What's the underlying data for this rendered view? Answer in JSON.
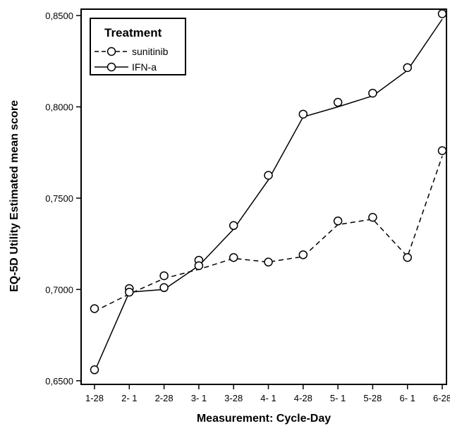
{
  "chart_data": {
    "type": "line",
    "xlabel": "Measurement: Cycle-Day",
    "ylabel": "EQ-5D Utility Estimated mean score",
    "categories": [
      "1-28",
      "2- 1",
      "2-28",
      "3- 1",
      "3-28",
      "4- 1",
      "4-28",
      "5- 1",
      "5-28",
      "6- 1",
      "6-28"
    ],
    "ylim": [
      0.648,
      0.8535
    ],
    "yticks": [
      0.65,
      0.7,
      0.75,
      0.8,
      0.85
    ],
    "ytick_labels": [
      "0,6500",
      "0,7000",
      "0,7500",
      "0,8000",
      "0,8500"
    ],
    "grid": false,
    "legend": {
      "title": "Treatment",
      "placement": "top-left"
    },
    "series": [
      {
        "name": "sunitinib",
        "line_style": "dashed",
        "points": [
          0.6895,
          0.7005,
          0.7075,
          0.716,
          0.7175,
          0.715,
          0.719,
          0.7375,
          0.7395,
          0.7175,
          0.776
        ],
        "fit": [
          0.688,
          0.6975,
          0.706,
          0.711,
          0.717,
          0.715,
          0.718,
          0.7355,
          0.7385,
          0.718,
          0.773
        ]
      },
      {
        "name": "IFN-a",
        "line_style": "solid",
        "points": [
          0.656,
          0.6985,
          0.701,
          0.713,
          0.735,
          0.7625,
          0.796,
          0.8025,
          0.8075,
          0.8215,
          0.851
        ],
        "fit": [
          0.655,
          0.6985,
          0.7,
          0.713,
          0.733,
          0.76,
          0.7945,
          0.8,
          0.806,
          0.82,
          0.848
        ]
      }
    ]
  }
}
